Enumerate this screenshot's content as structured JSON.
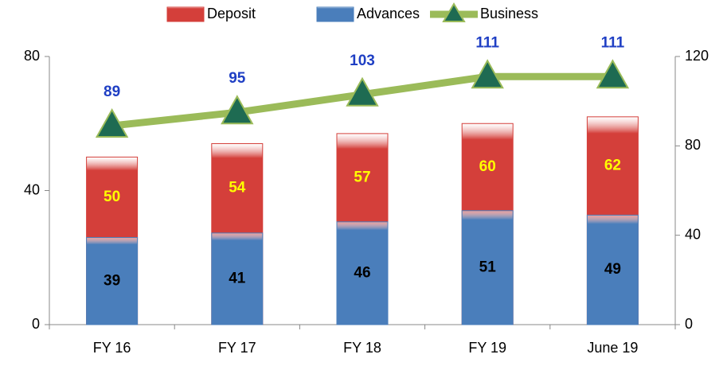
{
  "chart_data": {
    "type": "bar",
    "categories": [
      "FY 16",
      "FY 17",
      "FY 18",
      "FY 19",
      "June 19"
    ],
    "series": [
      {
        "name": "Deposit",
        "type": "bar",
        "color": "#d43f3a",
        "values": [
          50,
          54,
          57,
          60,
          62
        ]
      },
      {
        "name": "Advances",
        "type": "bar",
        "axis": "y2",
        "color": "#4a7ebb",
        "values": [
          39,
          41,
          46,
          51,
          49
        ]
      },
      {
        "name": "Business",
        "type": "line",
        "axis": "y2",
        "color": "#9bbb59",
        "marker_color": "#1e6b52",
        "values": [
          89,
          95,
          103,
          111,
          111
        ]
      }
    ],
    "ylim": [
      0,
      80
    ],
    "yticks": [
      0,
      40,
      80
    ],
    "y2lim": [
      0,
      120
    ],
    "y2ticks": [
      0,
      40,
      80,
      120
    ],
    "legend": "top"
  }
}
